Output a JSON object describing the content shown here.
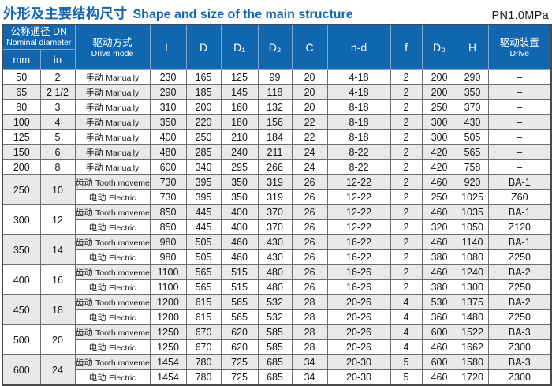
{
  "title": {
    "zh": "外形及主要结构尺寸",
    "en": "Shape and size of the main structure",
    "pressure": "PN1.0MPa"
  },
  "colors": {
    "header_blue": "#1166b0",
    "title_blue": "#1465af",
    "stripe_gray": "#e9e9e9",
    "outer_border": "#4a4a4a"
  },
  "header": {
    "dn_group_zh": "公称通径 DN",
    "dn_group_en": "Nominal diameter",
    "unit_mm": "mm",
    "unit_in": "in",
    "drive_mode_zh": "驱动方式",
    "drive_mode_en": "Drive mode",
    "dims": [
      "L",
      "D",
      "D₁",
      "D₂",
      "C",
      "n-d",
      "f",
      "D₀",
      "H"
    ],
    "drive_device_zh": "驱动装置",
    "drive_device_en": "Drive"
  },
  "groups": [
    {
      "mm": "50",
      "in": "2",
      "rows": [
        {
          "drive_zh": "手动",
          "drive_en": "Manually",
          "vals": [
            "230",
            "165",
            "125",
            "99",
            "20",
            "4-18",
            "2",
            "200",
            "290"
          ],
          "device": "–"
        }
      ]
    },
    {
      "mm": "65",
      "in": "2 1/2",
      "rows": [
        {
          "drive_zh": "手动",
          "drive_en": "Manually",
          "vals": [
            "290",
            "185",
            "145",
            "118",
            "20",
            "4-18",
            "2",
            "200",
            "350"
          ],
          "device": "–"
        }
      ]
    },
    {
      "mm": "80",
      "in": "3",
      "rows": [
        {
          "drive_zh": "手动",
          "drive_en": "Manually",
          "vals": [
            "310",
            "200",
            "160",
            "132",
            "20",
            "8-18",
            "2",
            "250",
            "370"
          ],
          "device": "–"
        }
      ]
    },
    {
      "mm": "100",
      "in": "4",
      "rows": [
        {
          "drive_zh": "手动",
          "drive_en": "Manually",
          "vals": [
            "350",
            "220",
            "180",
            "156",
            "22",
            "8-18",
            "2",
            "300",
            "430"
          ],
          "device": "–"
        }
      ]
    },
    {
      "mm": "125",
      "in": "5",
      "rows": [
        {
          "drive_zh": "手动",
          "drive_en": "Manually",
          "vals": [
            "400",
            "250",
            "210",
            "184",
            "22",
            "8-18",
            "2",
            "300",
            "505"
          ],
          "device": "–"
        }
      ]
    },
    {
      "mm": "150",
      "in": "6",
      "rows": [
        {
          "drive_zh": "手动",
          "drive_en": "Manually",
          "vals": [
            "480",
            "285",
            "240",
            "211",
            "24",
            "8-22",
            "2",
            "420",
            "565"
          ],
          "device": "–"
        }
      ]
    },
    {
      "mm": "200",
      "in": "8",
      "rows": [
        {
          "drive_zh": "手动",
          "drive_en": "Manually",
          "vals": [
            "600",
            "340",
            "295",
            "266",
            "24",
            "8-22",
            "2",
            "420",
            "758"
          ],
          "device": "–"
        }
      ]
    },
    {
      "mm": "250",
      "in": "10",
      "rows": [
        {
          "drive_zh": "齿动",
          "drive_en": "Tooth movement",
          "vals": [
            "730",
            "395",
            "350",
            "319",
            "26",
            "12-22",
            "2",
            "460",
            "920"
          ],
          "device": "BA-1"
        },
        {
          "drive_zh": "电动",
          "drive_en": "Electric",
          "vals": [
            "730",
            "395",
            "350",
            "319",
            "26",
            "12-22",
            "2",
            "250",
            "1025"
          ],
          "device": "Z60"
        }
      ]
    },
    {
      "mm": "300",
      "in": "12",
      "rows": [
        {
          "drive_zh": "齿动",
          "drive_en": "Tooth movement",
          "vals": [
            "850",
            "445",
            "400",
            "370",
            "26",
            "12-22",
            "2",
            "460",
            "1035"
          ],
          "device": "BA-1"
        },
        {
          "drive_zh": "电动",
          "drive_en": "Electric",
          "vals": [
            "850",
            "445",
            "400",
            "370",
            "26",
            "12-22",
            "2",
            "320",
            "1050"
          ],
          "device": "Z120"
        }
      ]
    },
    {
      "mm": "350",
      "in": "14",
      "rows": [
        {
          "drive_zh": "齿动",
          "drive_en": "Tooth movement",
          "vals": [
            "980",
            "505",
            "460",
            "430",
            "26",
            "16-22",
            "2",
            "460",
            "1140"
          ],
          "device": "BA-1"
        },
        {
          "drive_zh": "电动",
          "drive_en": "Electric",
          "vals": [
            "980",
            "505",
            "460",
            "430",
            "26",
            "16-22",
            "2",
            "380",
            "1080"
          ],
          "device": "Z250"
        }
      ]
    },
    {
      "mm": "400",
      "in": "16",
      "rows": [
        {
          "drive_zh": "齿动",
          "drive_en": "Tooth movement",
          "vals": [
            "1100",
            "565",
            "515",
            "480",
            "26",
            "16-26",
            "2",
            "460",
            "1240"
          ],
          "device": "BA-2"
        },
        {
          "drive_zh": "电动",
          "drive_en": "Electric",
          "vals": [
            "1100",
            "565",
            "515",
            "480",
            "26",
            "16-26",
            "2",
            "380",
            "1300"
          ],
          "device": "Z250"
        }
      ]
    },
    {
      "mm": "450",
      "in": "18",
      "rows": [
        {
          "drive_zh": "齿动",
          "drive_en": "Tooth movement",
          "vals": [
            "1200",
            "615",
            "565",
            "532",
            "28",
            "20-26",
            "4",
            "530",
            "1375"
          ],
          "device": "BA-2"
        },
        {
          "drive_zh": "电动",
          "drive_en": "Electric",
          "vals": [
            "1200",
            "615",
            "565",
            "532",
            "28",
            "20-26",
            "4",
            "360",
            "1480"
          ],
          "device": "Z250"
        }
      ]
    },
    {
      "mm": "500",
      "in": "20",
      "rows": [
        {
          "drive_zh": "齿动",
          "drive_en": "Tooth movement",
          "vals": [
            "1250",
            "670",
            "620",
            "585",
            "28",
            "20-26",
            "4",
            "600",
            "1522"
          ],
          "device": "BA-3"
        },
        {
          "drive_zh": "电动",
          "drive_en": "Electric",
          "vals": [
            "1250",
            "670",
            "620",
            "585",
            "28",
            "20-26",
            "4",
            "460",
            "1662"
          ],
          "device": "Z300"
        }
      ]
    },
    {
      "mm": "600",
      "in": "24",
      "rows": [
        {
          "drive_zh": "齿动",
          "drive_en": "Tooth movement",
          "vals": [
            "1454",
            "780",
            "725",
            "685",
            "34",
            "20-30",
            "5",
            "600",
            "1580"
          ],
          "device": "BA-3"
        },
        {
          "drive_zh": "电动",
          "drive_en": "Electric",
          "vals": [
            "1454",
            "780",
            "725",
            "685",
            "34",
            "20-30",
            "5",
            "460",
            "1720"
          ],
          "device": "Z300"
        }
      ]
    }
  ]
}
